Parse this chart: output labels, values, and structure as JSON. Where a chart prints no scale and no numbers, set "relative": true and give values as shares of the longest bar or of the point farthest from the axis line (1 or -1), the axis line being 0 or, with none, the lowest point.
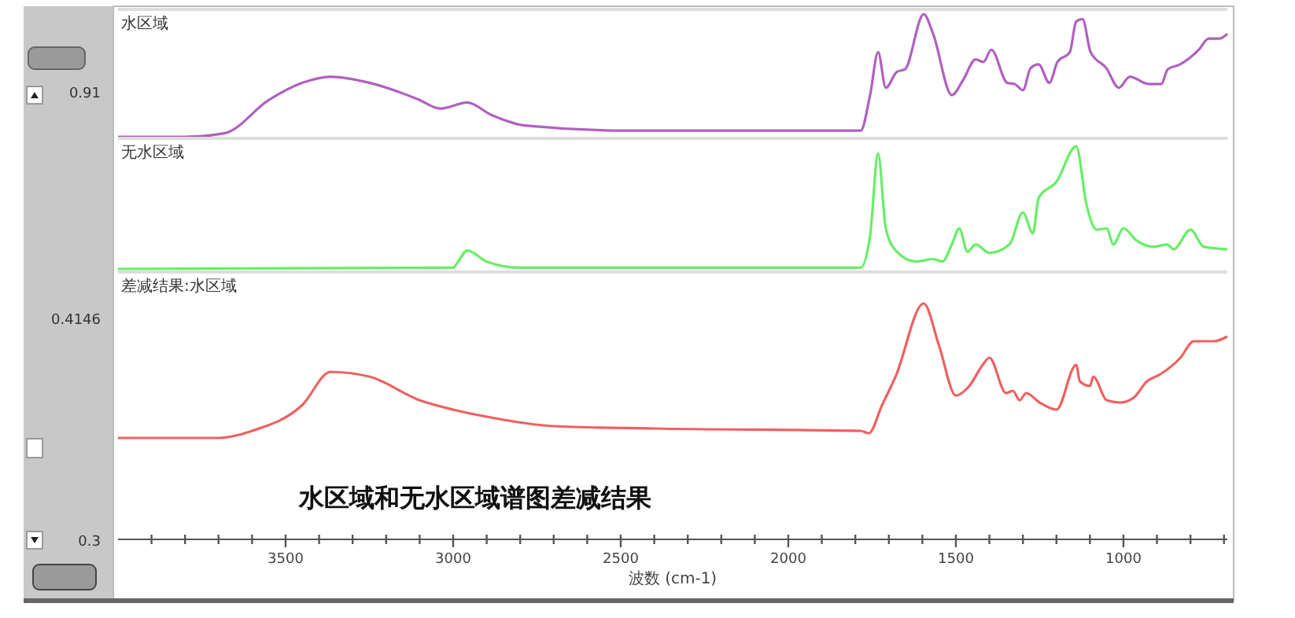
{
  "chart_data": [
    {
      "type": "other",
      "annotations": [
        "0.91",
        "0.4146",
        "0.3"
      ]
    },
    {
      "type": "line",
      "title": "水区域",
      "relative": true,
      "xlim": [
        4000,
        690
      ],
      "tick_labels": false,
      "grid": false,
      "x": [
        4000,
        3800,
        3681,
        3550,
        3450,
        3366,
        3249,
        3108,
        3038,
        2958,
        2887,
        2779,
        2474,
        1784,
        1756,
        1732,
        1709,
        1676,
        1652,
        1596,
        1568,
        1512,
        1479,
        1441,
        1418,
        1394,
        1347,
        1324,
        1300,
        1277,
        1253,
        1221,
        1197,
        1160,
        1141,
        1122,
        1098,
        1051,
        1014,
        981,
        925,
        887,
        868,
        831,
        775,
        746,
        713,
        690
      ],
      "series": [
        {
          "color": "#b060c0",
          "values": [
            0,
            0,
            0.03,
            0.3,
            0.44,
            0.49,
            0.44,
            0.31,
            0.23,
            0.28,
            0.18,
            0.09,
            0.05,
            0.05,
            0.34,
            0.69,
            0.4,
            0.53,
            0.55,
            1,
            0.84,
            0.34,
            0.46,
            0.63,
            0.61,
            0.71,
            0.44,
            0.43,
            0.38,
            0.56,
            0.59,
            0.44,
            0.61,
            0.69,
            0.94,
            0.96,
            0.69,
            0.56,
            0.4,
            0.49,
            0.43,
            0.43,
            0.55,
            0.59,
            0.71,
            0.8,
            0.8,
            0.84
          ]
        }
      ]
    },
    {
      "type": "line",
      "title": "无水区域",
      "relative": true,
      "xlim": [
        4000,
        690
      ],
      "tick_labels": false,
      "grid": false,
      "x": [
        4000,
        3000,
        2990,
        2958,
        2900,
        2800,
        1784,
        1756,
        1732,
        1709,
        1676,
        1620,
        1568,
        1540,
        1512,
        1490,
        1465,
        1441,
        1400,
        1340,
        1300,
        1270,
        1253,
        1200,
        1141,
        1110,
        1080,
        1050,
        1030,
        1000,
        960,
        910,
        870,
        850,
        800,
        760,
        690
      ],
      "series": [
        {
          "color": "#66ee66",
          "values": [
            0,
            0.01,
            0.04,
            0.15,
            0.06,
            0.01,
            0.01,
            0.27,
            0.94,
            0.33,
            0.14,
            0.06,
            0.08,
            0.06,
            0.2,
            0.33,
            0.14,
            0.2,
            0.13,
            0.2,
            0.46,
            0.29,
            0.58,
            0.71,
            1,
            0.52,
            0.32,
            0.33,
            0.2,
            0.33,
            0.23,
            0.18,
            0.2,
            0.16,
            0.32,
            0.18,
            0.16
          ]
        }
      ]
    },
    {
      "type": "line",
      "title": "差减结果:水区域",
      "xlabel": "波数 (cm-1)",
      "relative": true,
      "xlim": [
        4000,
        690
      ],
      "tick_labels": "x",
      "grid": false,
      "xticks": [
        {
          "value": 3900,
          "label": null
        },
        {
          "value": 3800,
          "label": null
        },
        {
          "value": 3700,
          "label": null
        },
        {
          "value": 3600,
          "label": null
        },
        3500,
        {
          "value": 3400,
          "label": null
        },
        {
          "value": 3300,
          "label": null
        },
        {
          "value": 3200,
          "label": null
        },
        {
          "value": 3100,
          "label": null
        },
        3000,
        {
          "value": 2900,
          "label": null
        },
        {
          "value": 2800,
          "label": null
        },
        {
          "value": 2700,
          "label": null
        },
        {
          "value": 2600,
          "label": null
        },
        2500,
        {
          "value": 2400,
          "label": null
        },
        {
          "value": 2300,
          "label": null
        },
        {
          "value": 2200,
          "label": null
        },
        {
          "value": 2100,
          "label": null
        },
        2000,
        {
          "value": 1900,
          "label": null
        },
        {
          "value": 1800,
          "label": null
        },
        {
          "value": 1700,
          "label": null
        },
        {
          "value": 1600,
          "label": null
        },
        1500,
        {
          "value": 1400,
          "label": null
        },
        {
          "value": 1300,
          "label": null
        },
        {
          "value": 1200,
          "label": null
        },
        {
          "value": 1100,
          "label": null
        },
        1000,
        {
          "value": 900,
          "label": null
        },
        {
          "value": 800,
          "label": null
        },
        {
          "value": 700,
          "label": null
        }
      ],
      "annotations": [
        "水区域和无水区域谱图差减结果"
      ],
      "x": [
        4000,
        3700,
        3600,
        3450,
        3366,
        3250,
        3100,
        3000,
        2900,
        2700,
        2400,
        1784,
        1760,
        1720,
        1680,
        1596,
        1550,
        1500,
        1460,
        1420,
        1400,
        1350,
        1330,
        1310,
        1290,
        1250,
        1200,
        1141,
        1130,
        1100,
        1090,
        1050,
        1010,
        970,
        930,
        890,
        830,
        790,
        730,
        690
      ],
      "series": [
        {
          "color": "#f06060",
          "values": [
            0.43,
            0.43,
            0.46,
            0.57,
            0.71,
            0.69,
            0.59,
            0.55,
            0.52,
            0.48,
            0.47,
            0.46,
            0.45,
            0.57,
            0.69,
            1,
            0.82,
            0.61,
            0.65,
            0.74,
            0.77,
            0.62,
            0.63,
            0.59,
            0.62,
            0.58,
            0.55,
            0.74,
            0.67,
            0.65,
            0.69,
            0.59,
            0.58,
            0.6,
            0.67,
            0.7,
            0.77,
            0.84,
            0.84,
            0.86
          ]
        }
      ]
    }
  ]
}
